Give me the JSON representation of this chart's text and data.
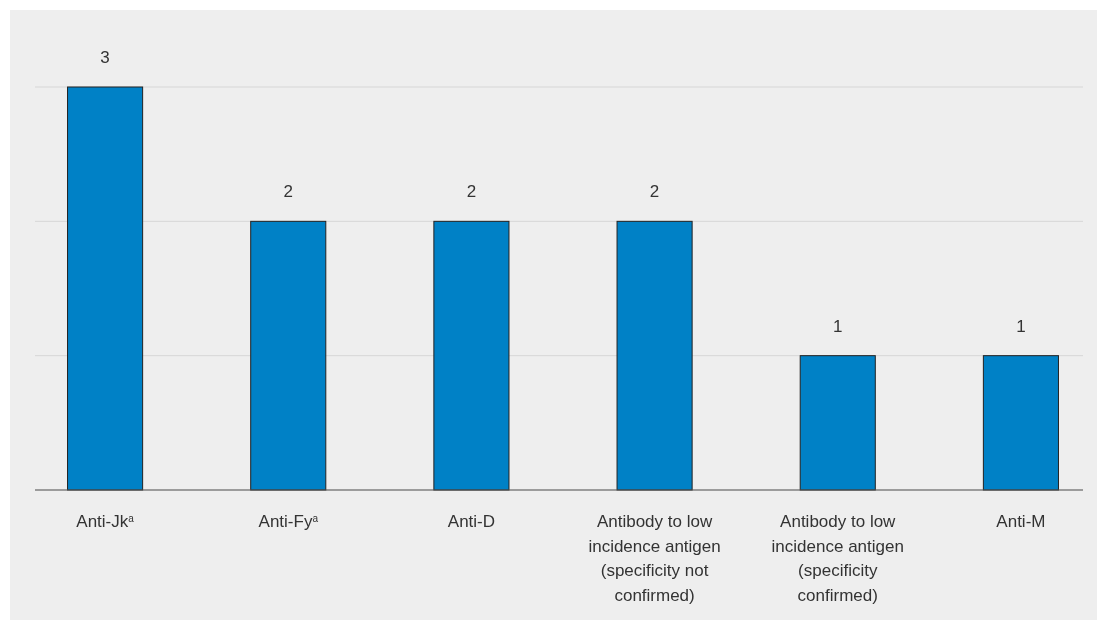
{
  "chart_data": {
    "type": "bar",
    "categories": [
      "Anti-Jk$^{a}$",
      "Anti-Fy$^{a}$",
      "Anti-D",
      "Antibody to low incidence antigen (specificity not confirmed)",
      "Antibody to low incidence antigen (specificity confirmed)",
      "Anti-M"
    ],
    "values": [
      3,
      2,
      2,
      2,
      1,
      1
    ],
    "color": "#0081c6",
    "ylim": [
      0,
      3
    ],
    "yticks": [
      {
        "value": 0,
        "label": null
      },
      {
        "value": 1,
        "label": null
      },
      {
        "value": 2,
        "label": null
      },
      {
        "value": 3,
        "label": null
      }
    ],
    "tick_labels": "x",
    "grid": "y",
    "data_labels": true
  }
}
